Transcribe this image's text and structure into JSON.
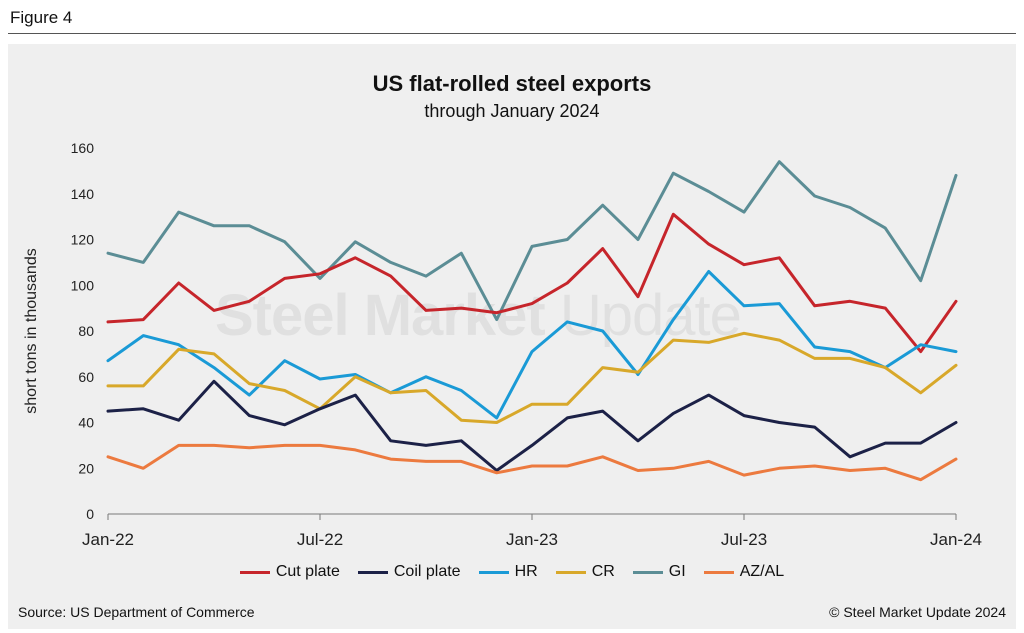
{
  "figure_label": "Figure 4",
  "source": "Source: US Department of Commerce",
  "copyright": "© Steel Market Update 2024",
  "watermark": {
    "strong": "Steel Market",
    "light": "Update"
  },
  "colors": {
    "Cut plate": "#c6252b",
    "Coil plate": "#1c2147",
    "HR": "#1a9ad6",
    "CR": "#d8a82a",
    "GI": "#5b8d95",
    "AZ/AL": "#ec7a3f"
  },
  "chart_data": {
    "type": "line",
    "title": "US flat-rolled steel exports",
    "subtitle": "through January 2024",
    "xlabel": "",
    "ylabel": "short tons in thousands",
    "ylim": [
      0,
      160
    ],
    "yticks": [
      0,
      20,
      40,
      60,
      80,
      100,
      120,
      140,
      160
    ],
    "x": [
      "Jan-22",
      "Feb-22",
      "Mar-22",
      "Apr-22",
      "May-22",
      "Jun-22",
      "Jul-22",
      "Aug-22",
      "Sep-22",
      "Oct-22",
      "Nov-22",
      "Dec-22",
      "Jan-23",
      "Feb-23",
      "Mar-23",
      "Apr-23",
      "May-23",
      "Jun-23",
      "Jul-23",
      "Aug-23",
      "Sep-23",
      "Oct-23",
      "Nov-23",
      "Dec-23",
      "Jan-24"
    ],
    "xtick_labels": [
      {
        "index": 0,
        "label": "Jan-22"
      },
      {
        "index": 6,
        "label": "Jul-22"
      },
      {
        "index": 12,
        "label": "Jan-23"
      },
      {
        "index": 18,
        "label": "Jul-23"
      },
      {
        "index": 24,
        "label": "Jan-24"
      }
    ],
    "grid": false,
    "legend_position": "bottom",
    "series": [
      {
        "name": "Cut plate",
        "values": [
          84,
          85,
          101,
          89,
          93,
          103,
          105,
          112,
          104,
          89,
          90,
          88,
          92,
          101,
          116,
          95,
          131,
          118,
          109,
          112,
          91,
          93,
          90,
          71,
          93
        ]
      },
      {
        "name": "Coil plate",
        "values": [
          45,
          46,
          41,
          58,
          43,
          39,
          46,
          52,
          32,
          30,
          32,
          19,
          30,
          42,
          45,
          32,
          44,
          52,
          43,
          40,
          38,
          25,
          31,
          31,
          40
        ]
      },
      {
        "name": "HR",
        "values": [
          67,
          78,
          74,
          64,
          52,
          67,
          59,
          61,
          53,
          60,
          54,
          42,
          71,
          84,
          80,
          61,
          85,
          106,
          91,
          92,
          73,
          71,
          64,
          74,
          71
        ]
      },
      {
        "name": "CR",
        "values": [
          56,
          56,
          72,
          70,
          57,
          54,
          46,
          60,
          53,
          54,
          41,
          40,
          48,
          48,
          64,
          62,
          76,
          75,
          79,
          76,
          68,
          68,
          64,
          53,
          65
        ]
      },
      {
        "name": "GI",
        "values": [
          114,
          110,
          132,
          126,
          126,
          119,
          103,
          119,
          110,
          104,
          114,
          85,
          117,
          120,
          135,
          120,
          149,
          141,
          132,
          154,
          139,
          134,
          125,
          102,
          148
        ]
      },
      {
        "name": "AZ/AL",
        "values": [
          25,
          20,
          30,
          30,
          29,
          30,
          30,
          28,
          24,
          23,
          23,
          18,
          21,
          21,
          25,
          19,
          20,
          23,
          17,
          20,
          21,
          19,
          20,
          15,
          24
        ]
      }
    ]
  }
}
